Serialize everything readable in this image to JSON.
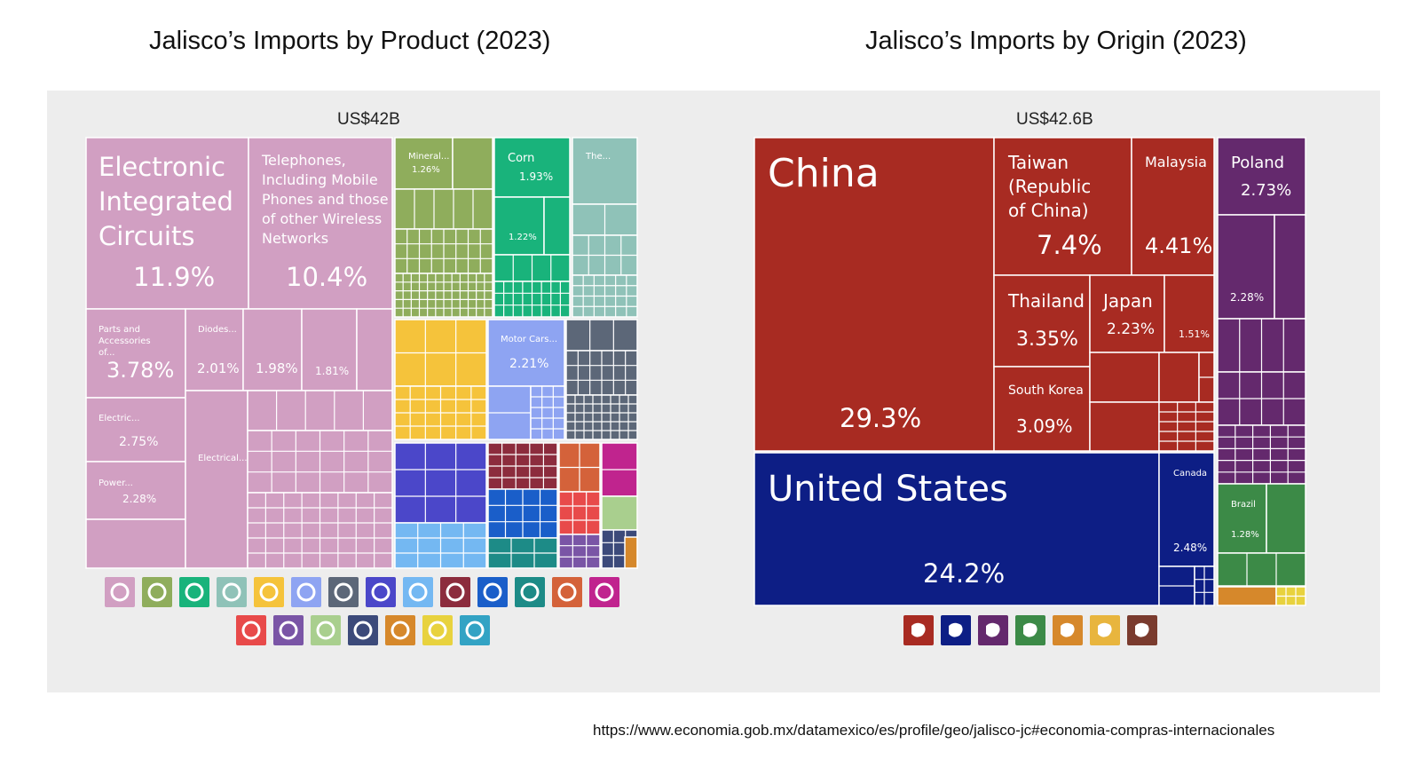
{
  "source_url": "https://www.economia.gob.mx/datamexico/es/profile/geo/jalisco-jc#economia-compras-internacionales",
  "chart_data": [
    {
      "type": "treemap",
      "title": "Jalisco’s Imports by Product (2023)",
      "total_label": "US$42B",
      "cells": [
        {
          "name": "Electronic Integrated Circuits",
          "pct": "11.9%",
          "color": "#d19fc2"
        },
        {
          "name": "Telephones, Including Mobile Phones and those of other Wireless Networks",
          "pct": "10.4%",
          "color": "#d19fc2"
        },
        {
          "name": "Parts and Accessories of...",
          "pct": "3.78%",
          "color": "#d19fc2"
        },
        {
          "name": "Diodes...",
          "pct": "2.01%",
          "color": "#d19fc2"
        },
        {
          "name": "",
          "pct": "1.98%",
          "color": "#d19fc2"
        },
        {
          "name": "",
          "pct": "1.81%",
          "color": "#d19fc2"
        },
        {
          "name": "Electric...",
          "pct": "2.75%",
          "color": "#d19fc2"
        },
        {
          "name": "Power...",
          "pct": "2.28%",
          "color": "#d19fc2"
        },
        {
          "name": "Electrical...",
          "pct": "",
          "color": "#d19fc2"
        },
        {
          "name": "Mineral...",
          "pct": "1.26%",
          "color": "#8fad5c"
        },
        {
          "name": "Corn",
          "pct": "1.93%",
          "color": "#19b37b"
        },
        {
          "name": "",
          "pct": "1.22%",
          "color": "#19b37b"
        },
        {
          "name": "The...",
          "pct": "",
          "color": "#8fc2b8"
        },
        {
          "name": "Motor Cars...",
          "pct": "2.21%",
          "color": "#8ea4f2"
        }
      ],
      "icons": [
        "machinery-icon",
        "chemicals-icon",
        "vegetables-icon",
        "plant-icon",
        "recycling-icon",
        "transport-icon",
        "metals-icon",
        "instruments-icon",
        "animal-icon",
        "textiles-icon",
        "paper-icon",
        "foodstuffs-icon",
        "wood-icon",
        "footwear-icon",
        "document-icon",
        "stone-icon",
        "weapons-icon",
        "precious-metals-icon",
        "hides-icon",
        "arts-icon",
        "plastics-icon"
      ]
    },
    {
      "type": "treemap",
      "title": "Jalisco’s Imports by Origin (2023)",
      "total_label": "US$42.6B",
      "cells": [
        {
          "name": "China",
          "pct": "29.3%",
          "color": "#a82b22"
        },
        {
          "name": "Taiwan (Republic of China)",
          "pct": "7.4%",
          "color": "#a82b22"
        },
        {
          "name": "Malaysia",
          "pct": "4.41%",
          "color": "#a82b22"
        },
        {
          "name": "Thailand",
          "pct": "3.35%",
          "color": "#a82b22"
        },
        {
          "name": "Japan",
          "pct": "2.23%",
          "color": "#a82b22"
        },
        {
          "name": "",
          "pct": "1.51%",
          "color": "#a82b22"
        },
        {
          "name": "South Korea",
          "pct": "3.09%",
          "color": "#a82b22"
        },
        {
          "name": "United States",
          "pct": "24.2%",
          "color": "#0d1e85"
        },
        {
          "name": "Canada",
          "pct": "2.48%",
          "color": "#0d1e85"
        },
        {
          "name": "Poland",
          "pct": "2.73%",
          "color": "#64296d"
        },
        {
          "name": "",
          "pct": "2.28%",
          "color": "#64296d"
        },
        {
          "name": "Brazil",
          "pct": "1.28%",
          "color": "#3c8a47"
        }
      ],
      "icons": [
        "asia-icon",
        "north-america-icon",
        "europe-icon",
        "south-america-icon",
        "oceania-icon",
        "africa-icon",
        "antarctica-icon"
      ]
    }
  ]
}
